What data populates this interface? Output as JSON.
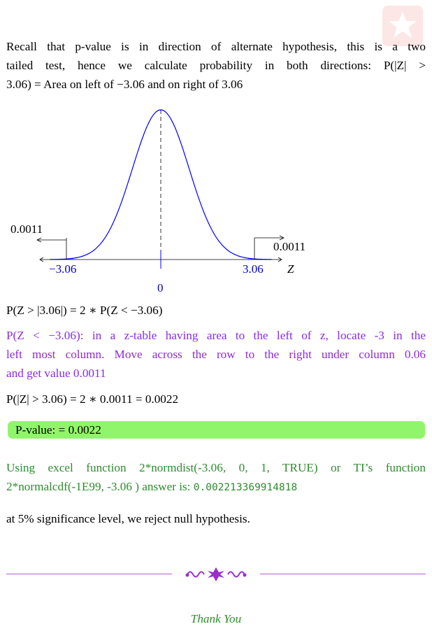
{
  "intro": {
    "line1": "Recall that p-value is in direction of alternate hypothesis, this is a two",
    "line2": "tailed test, hence we calculate probability in both directions: P(|Z| >",
    "line3": "3.06) = Area on left of −3.06 and on right of 3.06"
  },
  "graph": {
    "left_area": "0.0011",
    "right_area": "0.0011",
    "left_tick": "−3.06",
    "right_tick": "3.06",
    "axis_label": "Z",
    "center_label": "0",
    "curve_color": "#0000ff",
    "shade_color": "#87cefa"
  },
  "eq1": "P(Z > |3.06|) = 2 ∗ P(Z < −3.06)",
  "explain": {
    "line1": "P(Z < −3.06): in a z-table having area to the left of z, locate -3 in the",
    "line2": "left most column. Move across the row to the right under column 0.06",
    "line3": "and get value 0.0011"
  },
  "eq2": "P(|Z| > 3.06) = 2 ∗ 0.0011 = 0.0022",
  "pvalue_box": "P-value: = 0.0022",
  "excel": {
    "line1": "Using excel function 2*normdist(-3.06, 0, 1, TRUE) or TI’s function",
    "line2_text": "2*normalcdf(-1E99, -3.06 ) answer is: ",
    "line2_value": "0.002213369914818"
  },
  "conclusion": "at 5% significance level, we reject null hypothesis.",
  "thanks": "Thank You",
  "colors": {
    "purple": "#8a2be2",
    "green": "#2e8b2e",
    "box": "#90f56a",
    "divider": "#b45ad6"
  }
}
